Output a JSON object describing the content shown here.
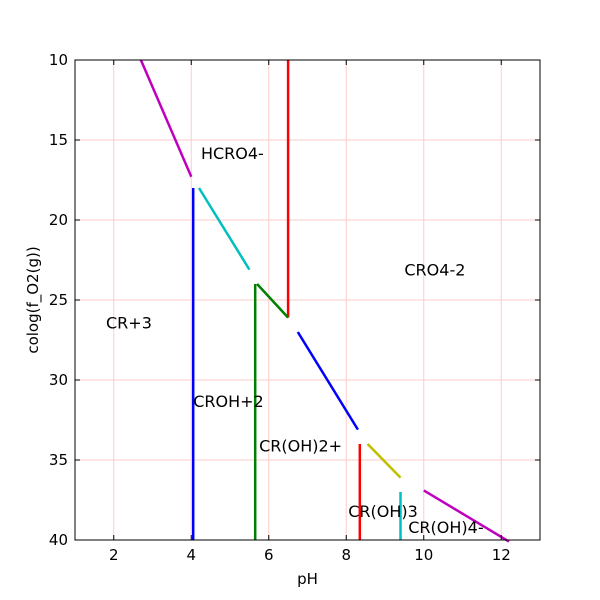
{
  "chart_data": {
    "type": "line",
    "xlabel": "pH",
    "ylabel": "colog(f_O2(g))",
    "xlim": [
      1,
      13
    ],
    "ylim": [
      10,
      40
    ],
    "y_inverted": true,
    "grid": {
      "x": true,
      "y": true,
      "color": "#ffcccc"
    },
    "x_ticks": [
      2,
      4,
      6,
      8,
      10,
      12
    ],
    "y_ticks": [
      10,
      15,
      20,
      25,
      30,
      35,
      40
    ],
    "region_labels": [
      {
        "text": "HCRO4-",
        "x": 4.25,
        "y": 15.8
      },
      {
        "text": "CRO4-2",
        "x": 9.5,
        "y": 23.1
      },
      {
        "text": "CR+3",
        "x": 1.8,
        "y": 26.4
      },
      {
        "text": "CROH+2",
        "x": 4.05,
        "y": 31.3
      },
      {
        "text": "CR(OH)2+",
        "x": 5.75,
        "y": 34.1
      },
      {
        "text": "CR(OH)3",
        "x": 8.05,
        "y": 38.2
      },
      {
        "text": "CR(OH)4-",
        "x": 9.6,
        "y": 39.2
      }
    ],
    "series": [
      {
        "color": "#bf00bf",
        "points": [
          [
            2.7,
            10.0
          ],
          [
            4.0,
            17.3
          ]
        ]
      },
      {
        "color": "#00bfbf",
        "points": [
          [
            4.2,
            18.0
          ],
          [
            5.5,
            23.1
          ]
        ]
      },
      {
        "color": "#0000ff",
        "points": [
          [
            4.05,
            18.0
          ],
          [
            4.05,
            40.0
          ]
        ]
      },
      {
        "color": "#ff0000",
        "points": [
          [
            6.5,
            10.0
          ],
          [
            6.5,
            26.1
          ]
        ]
      },
      {
        "color": "#008000",
        "points": [
          [
            5.7,
            24.0
          ],
          [
            6.5,
            26.1
          ]
        ]
      },
      {
        "color": "#008000",
        "points": [
          [
            5.65,
            24.0
          ],
          [
            5.65,
            40.0
          ]
        ]
      },
      {
        "color": "#0000ff",
        "points": [
          [
            6.75,
            27.0
          ],
          [
            8.3,
            33.1
          ]
        ]
      },
      {
        "color": "#ff0000",
        "points": [
          [
            8.35,
            34.0
          ],
          [
            8.35,
            40.0
          ]
        ]
      },
      {
        "color": "#bfbf00",
        "points": [
          [
            8.55,
            34.0
          ],
          [
            9.4,
            36.1
          ]
        ]
      },
      {
        "color": "#00bfbf",
        "points": [
          [
            9.4,
            37.0
          ],
          [
            9.4,
            40.0
          ]
        ]
      },
      {
        "color": "#bf00bf",
        "points": [
          [
            10.0,
            36.9
          ],
          [
            12.2,
            40.1
          ]
        ]
      }
    ]
  }
}
